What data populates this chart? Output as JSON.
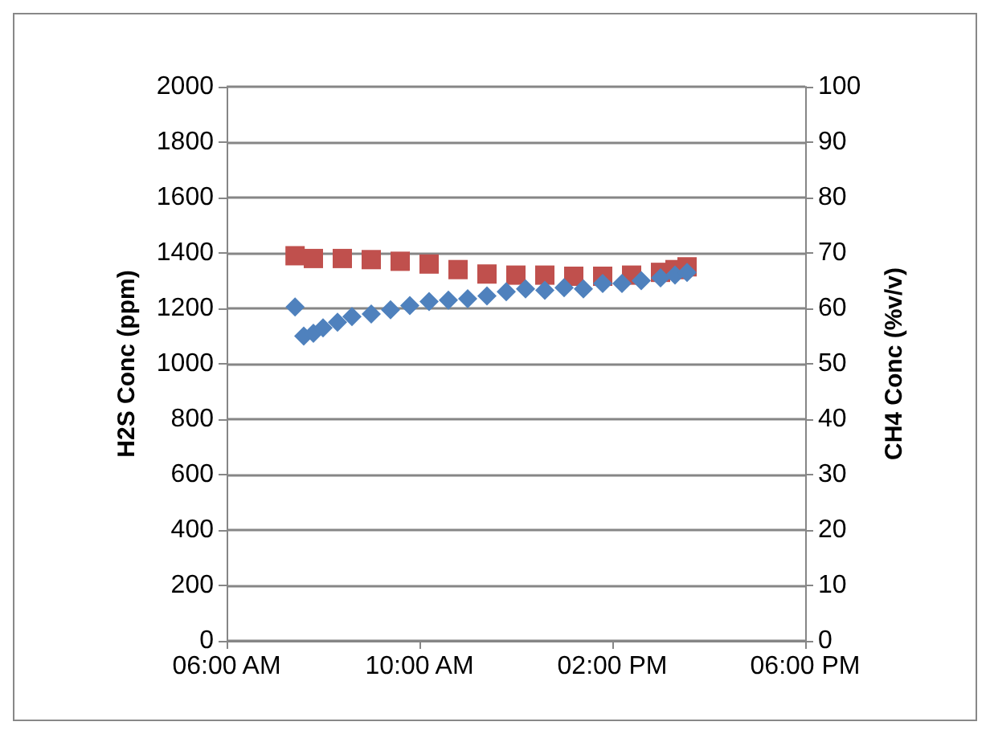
{
  "chart_data": {
    "type": "scatter",
    "ylabel": "H2S Conc (ppm)",
    "y2label": "CH4 Conc (%v/v)",
    "xlim": [
      6,
      18
    ],
    "xticks": [
      {
        "value": 6,
        "label": "06:00 AM"
      },
      {
        "value": 10,
        "label": "10:00 AM"
      },
      {
        "value": 14,
        "label": "02:00 PM"
      },
      {
        "value": 18,
        "label": "06:00 PM"
      }
    ],
    "ylim": [
      0,
      2000
    ],
    "yticks": [
      0,
      200,
      400,
      600,
      800,
      1000,
      1200,
      1400,
      1600,
      1800,
      2000
    ],
    "y2lim": [
      0,
      100
    ],
    "y2ticks": [
      0,
      10,
      20,
      30,
      40,
      50,
      60,
      70,
      80,
      90,
      100
    ],
    "grid": "y",
    "series": [
      {
        "color": "#4f81bd",
        "marker": "diamond",
        "x": [
          7.42,
          7.6,
          7.8,
          8.0,
          8.3,
          8.6,
          9.0,
          9.4,
          9.8,
          10.2,
          10.6,
          11.0,
          11.4,
          11.8,
          12.2,
          12.6,
          13.0,
          13.4,
          13.8,
          14.2,
          14.6,
          15.0,
          15.3,
          15.55
        ],
        "values": [
          1205,
          1100,
          1110,
          1130,
          1150,
          1170,
          1180,
          1195,
          1210,
          1225,
          1230,
          1235,
          1245,
          1260,
          1270,
          1265,
          1275,
          1270,
          1290,
          1290,
          1300,
          1310,
          1320,
          1330
        ]
      },
      {
        "color": "#c0504d",
        "marker": "square",
        "axis": "y2",
        "x": [
          7.42,
          7.8,
          8.4,
          9.0,
          9.6,
          10.2,
          10.8,
          11.4,
          12.0,
          12.6,
          13.2,
          13.8,
          14.4,
          15.0,
          15.3,
          15.55
        ],
        "values": [
          69.5,
          69,
          69,
          68.8,
          68.5,
          68,
          67,
          66.2,
          66,
          66,
          65.8,
          65.8,
          66,
          66.5,
          67,
          67.5
        ]
      }
    ]
  }
}
